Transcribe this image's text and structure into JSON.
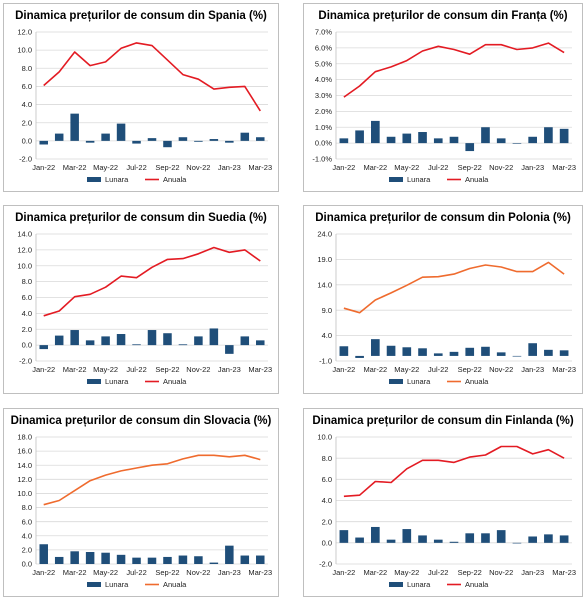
{
  "chart_data": [
    {
      "type": "bar",
      "title": "Dinamica prețurilor de consum din Spania (%)",
      "categories": [
        "Jan-22",
        "Feb-22",
        "Mar-22",
        "Apr-22",
        "May-22",
        "Jun-22",
        "Jul-22",
        "Aug-22",
        "Sep-22",
        "Oct-22",
        "Nov-22",
        "Dec-22",
        "Jan-23",
        "Feb-23",
        "Mar-23"
      ],
      "x_tick_labels": [
        "Jan-22",
        "Mar-22",
        "May-22",
        "Jul-22",
        "Sep-22",
        "Nov-22",
        "Jan-23",
        "Mar-23"
      ],
      "y_ticks": [
        "-2.0",
        "0.0",
        "2.0",
        "4.0",
        "6.0",
        "8.0",
        "10.0",
        "12.0"
      ],
      "ylim": [
        -2,
        12
      ],
      "grid": true,
      "legend_position": "bottom",
      "series": [
        {
          "name": "Lunara",
          "chart_type": "bar",
          "color": "#1f4e79",
          "values": [
            -0.4,
            0.8,
            3.0,
            -0.2,
            0.8,
            1.9,
            -0.3,
            0.3,
            -0.7,
            0.4,
            -0.1,
            0.2,
            -0.2,
            0.9,
            0.4
          ]
        },
        {
          "name": "Anuala",
          "chart_type": "line",
          "color": "#e31b23",
          "values": [
            6.1,
            7.6,
            9.8,
            8.3,
            8.7,
            10.2,
            10.8,
            10.5,
            8.9,
            7.3,
            6.8,
            5.7,
            5.9,
            6.0,
            3.3
          ]
        }
      ]
    },
    {
      "type": "bar",
      "title": "Dinamica prețurilor de consum din Franța (%)",
      "categories": [
        "Jan-22",
        "Feb-22",
        "Mar-22",
        "Apr-22",
        "May-22",
        "Jun-22",
        "Jul-22",
        "Aug-22",
        "Sep-22",
        "Oct-22",
        "Nov-22",
        "Dec-22",
        "Jan-23",
        "Feb-23",
        "Mar-23"
      ],
      "x_tick_labels": [
        "Jan-22",
        "Mar-22",
        "May-22",
        "Jul-22",
        "Sep-22",
        "Nov-22",
        "Jan-23",
        "Mar-23"
      ],
      "y_ticks": [
        "-1.0%",
        "0.0%",
        "1.0%",
        "2.0%",
        "3.0%",
        "4.0%",
        "5.0%",
        "6.0%",
        "7.0%"
      ],
      "ylim": [
        -1,
        7
      ],
      "grid": true,
      "legend_position": "bottom",
      "series": [
        {
          "name": "Lunara",
          "chart_type": "bar",
          "color": "#1f4e79",
          "values": [
            0.3,
            0.8,
            1.4,
            0.4,
            0.6,
            0.7,
            0.3,
            0.4,
            -0.5,
            1.0,
            0.3,
            0.0,
            0.4,
            1.0,
            0.9
          ]
        },
        {
          "name": "Anuala",
          "chart_type": "line",
          "color": "#e31b23",
          "values": [
            2.9,
            3.6,
            4.5,
            4.8,
            5.2,
            5.8,
            6.1,
            5.9,
            5.6,
            6.2,
            6.2,
            5.9,
            6.0,
            6.3,
            5.7
          ]
        }
      ]
    },
    {
      "type": "bar",
      "title": "Dinamica prețurilor de consum din Suedia (%)",
      "categories": [
        "Jan-22",
        "Feb-22",
        "Mar-22",
        "Apr-22",
        "May-22",
        "Jun-22",
        "Jul-22",
        "Aug-22",
        "Sep-22",
        "Oct-22",
        "Nov-22",
        "Dec-22",
        "Jan-23",
        "Feb-23",
        "Mar-23"
      ],
      "x_tick_labels": [
        "Jan-22",
        "Mar-22",
        "May-22",
        "Jul-22",
        "Sep-22",
        "Nov-22",
        "Jan-23",
        "Mar-23"
      ],
      "y_ticks": [
        "-2.0",
        "0.0",
        "2.0",
        "4.0",
        "6.0",
        "8.0",
        "10.0",
        "12.0",
        "14.0"
      ],
      "ylim": [
        -2,
        14
      ],
      "grid": true,
      "legend_position": "bottom",
      "series": [
        {
          "name": "Lunara",
          "chart_type": "bar",
          "color": "#1f4e79",
          "values": [
            -0.5,
            1.2,
            1.9,
            0.6,
            1.1,
            1.4,
            0.1,
            1.9,
            1.5,
            0.1,
            1.1,
            2.1,
            -1.1,
            1.1,
            0.6
          ]
        },
        {
          "name": "Anuala",
          "chart_type": "line",
          "color": "#e31b23",
          "values": [
            3.7,
            4.3,
            6.1,
            6.4,
            7.3,
            8.7,
            8.5,
            9.8,
            10.8,
            10.9,
            11.5,
            12.3,
            11.7,
            12.0,
            10.6
          ]
        }
      ]
    },
    {
      "type": "bar",
      "title": "Dinamica prețurilor de consum din Polonia (%)",
      "categories": [
        "Jan-22",
        "Feb-22",
        "Mar-22",
        "Apr-22",
        "May-22",
        "Jun-22",
        "Jul-22",
        "Aug-22",
        "Sep-22",
        "Oct-22",
        "Nov-22",
        "Dec-22",
        "Jan-23",
        "Feb-23",
        "Mar-23"
      ],
      "x_tick_labels": [
        "Jan-22",
        "Mar-22",
        "May-22",
        "Jul-22",
        "Sep-22",
        "Nov-22",
        "Jan-23",
        "Mar-23"
      ],
      "y_ticks": [
        "-1.0",
        "4.0",
        "9.0",
        "14.0",
        "19.0",
        "24.0"
      ],
      "ylim": [
        -1,
        24
      ],
      "grid": true,
      "legend_position": "bottom",
      "series": [
        {
          "name": "Lunara",
          "chart_type": "bar",
          "color": "#1f4e79",
          "values": [
            1.9,
            -0.4,
            3.3,
            2.0,
            1.7,
            1.5,
            0.5,
            0.8,
            1.6,
            1.8,
            0.7,
            0.0,
            2.5,
            1.2,
            1.1
          ]
        },
        {
          "name": "Anuala",
          "chart_type": "line",
          "color": "#ef6b2e",
          "values": [
            9.4,
            8.5,
            11.0,
            12.4,
            13.9,
            15.5,
            15.6,
            16.1,
            17.2,
            17.9,
            17.5,
            16.6,
            16.6,
            18.4,
            16.1
          ]
        }
      ]
    },
    {
      "type": "bar",
      "title": "Dinamica prețurilor de consum din Slovacia (%)",
      "categories": [
        "Jan-22",
        "Feb-22",
        "Mar-22",
        "Apr-22",
        "May-22",
        "Jun-22",
        "Jul-22",
        "Aug-22",
        "Sep-22",
        "Oct-22",
        "Nov-22",
        "Dec-22",
        "Jan-23",
        "Feb-23",
        "Mar-23"
      ],
      "x_tick_labels": [
        "Jan-22",
        "Mar-22",
        "May-22",
        "Jul-22",
        "Sep-22",
        "Nov-22",
        "Jan-23",
        "Mar-23"
      ],
      "y_ticks": [
        "0.0",
        "2.0",
        "4.0",
        "6.0",
        "8.0",
        "10.0",
        "12.0",
        "14.0",
        "16.0",
        "18.0"
      ],
      "ylim": [
        0,
        18
      ],
      "grid": true,
      "legend_position": "bottom",
      "series": [
        {
          "name": "Lunara",
          "chart_type": "bar",
          "color": "#1f4e79",
          "values": [
            2.8,
            1.0,
            1.8,
            1.7,
            1.6,
            1.3,
            0.9,
            0.9,
            1.0,
            1.2,
            1.1,
            0.2,
            2.6,
            1.2,
            1.2
          ]
        },
        {
          "name": "Anuala",
          "chart_type": "line",
          "color": "#ef6b2e",
          "values": [
            8.4,
            9.0,
            10.4,
            11.8,
            12.6,
            13.2,
            13.6,
            14.0,
            14.2,
            14.9,
            15.4,
            15.4,
            15.2,
            15.4,
            14.8
          ]
        }
      ]
    },
    {
      "type": "bar",
      "title": "Dinamica prețurilor de consum din Finlanda (%)",
      "categories": [
        "Jan-22",
        "Feb-22",
        "Mar-22",
        "Apr-22",
        "May-22",
        "Jun-22",
        "Jul-22",
        "Aug-22",
        "Sep-22",
        "Oct-22",
        "Nov-22",
        "Dec-22",
        "Jan-23",
        "Feb-23",
        "Mar-23"
      ],
      "x_tick_labels": [
        "Jan-22",
        "Mar-22",
        "May-22",
        "Jul-22",
        "Sep-22",
        "Nov-22",
        "Jan-23",
        "Mar-23"
      ],
      "y_ticks": [
        "-2.0",
        "0.0",
        "2.0",
        "4.0",
        "6.0",
        "8.0",
        "10.0"
      ],
      "ylim": [
        -2,
        10
      ],
      "grid": true,
      "legend_position": "bottom",
      "series": [
        {
          "name": "Lunara",
          "chart_type": "bar",
          "color": "#1f4e79",
          "values": [
            1.2,
            0.5,
            1.5,
            0.3,
            1.3,
            0.7,
            0.3,
            0.1,
            0.9,
            0.9,
            1.2,
            0.0,
            0.6,
            0.8,
            0.7
          ]
        },
        {
          "name": "Anuala",
          "chart_type": "line",
          "color": "#e31b23",
          "values": [
            4.4,
            4.5,
            5.8,
            5.7,
            7.0,
            7.8,
            7.8,
            7.6,
            8.1,
            8.3,
            9.1,
            9.1,
            8.4,
            8.8,
            8.0
          ]
        }
      ]
    }
  ]
}
